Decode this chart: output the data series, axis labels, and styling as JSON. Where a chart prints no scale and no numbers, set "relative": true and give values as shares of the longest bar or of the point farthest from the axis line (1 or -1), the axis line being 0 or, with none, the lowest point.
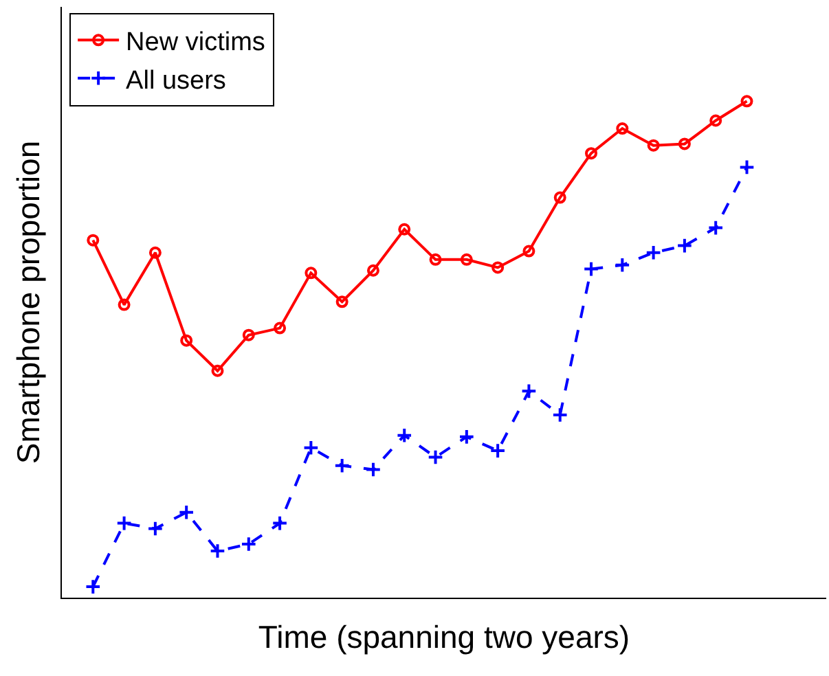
{
  "chart_data": {
    "type": "line",
    "xlabel": "Time (spanning two years)",
    "ylabel": "Smartphone proportion",
    "relative": true,
    "grid": false,
    "legend": "top left",
    "categories": [
      null,
      null,
      null,
      null,
      null,
      null,
      null,
      null,
      null,
      null,
      null,
      null,
      null,
      null,
      null,
      null,
      null,
      null,
      null,
      null,
      null,
      null
    ],
    "series": [
      {
        "name": "New victims",
        "color": "#ff0000",
        "marker": "circle",
        "line_style": "solid",
        "values": [
          0.72,
          0.59,
          0.695,
          0.518,
          0.457,
          0.529,
          0.543,
          0.654,
          0.596,
          0.659,
          0.742,
          0.681,
          0.681,
          0.665,
          0.698,
          0.806,
          0.895,
          0.945,
          0.911,
          0.914,
          0.961,
          1
        ]
      },
      {
        "name": "All users",
        "color": "#0000ff",
        "marker": "cross",
        "line_style": "dashed",
        "values": [
          0.022,
          0.15,
          0.139,
          0.172,
          0.094,
          0.108,
          0.15,
          0.302,
          0.266,
          0.258,
          0.327,
          0.283,
          0.324,
          0.296,
          0.416,
          0.368,
          0.662,
          0.67,
          0.695,
          0.709,
          0.745,
          0.867
        ]
      }
    ]
  }
}
